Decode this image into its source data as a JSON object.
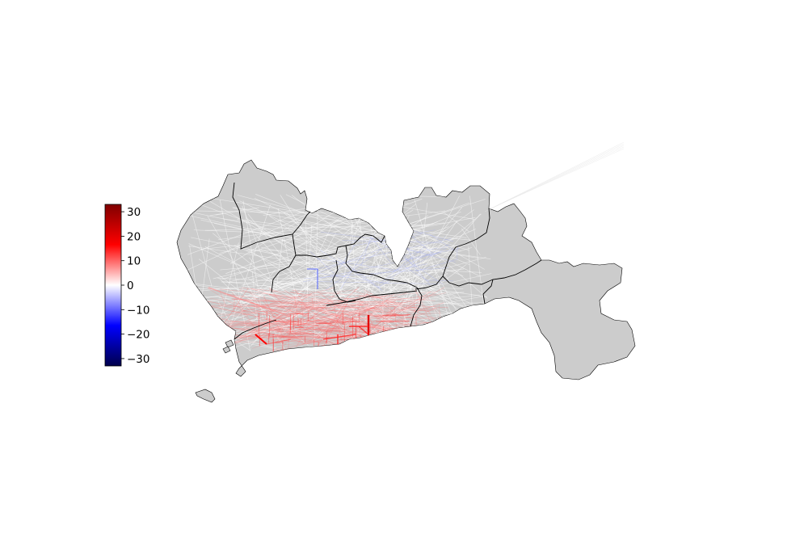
{
  "colorbar": {
    "colormap": "seismic",
    "min": -33,
    "max": 33,
    "ticks": [
      {
        "value": 30,
        "label": "30"
      },
      {
        "value": 20,
        "label": "20"
      },
      {
        "value": 10,
        "label": "10"
      },
      {
        "value": 0,
        "label": "0"
      },
      {
        "value": -10,
        "label": "−10"
      },
      {
        "value": -20,
        "label": "−20"
      },
      {
        "value": -30,
        "label": "−30"
      }
    ]
  },
  "colors": {
    "land": "#cccccc",
    "boundary": "#000000",
    "positive": "#ff0000",
    "negative": "#0000ff",
    "neutral": "#ffffff"
  },
  "map": {
    "layers": [
      "district-boundaries",
      "od-flow-lines"
    ],
    "flow_sign_shown": "positive flows concentrated along southern coast; minor negative flows in central-north"
  }
}
